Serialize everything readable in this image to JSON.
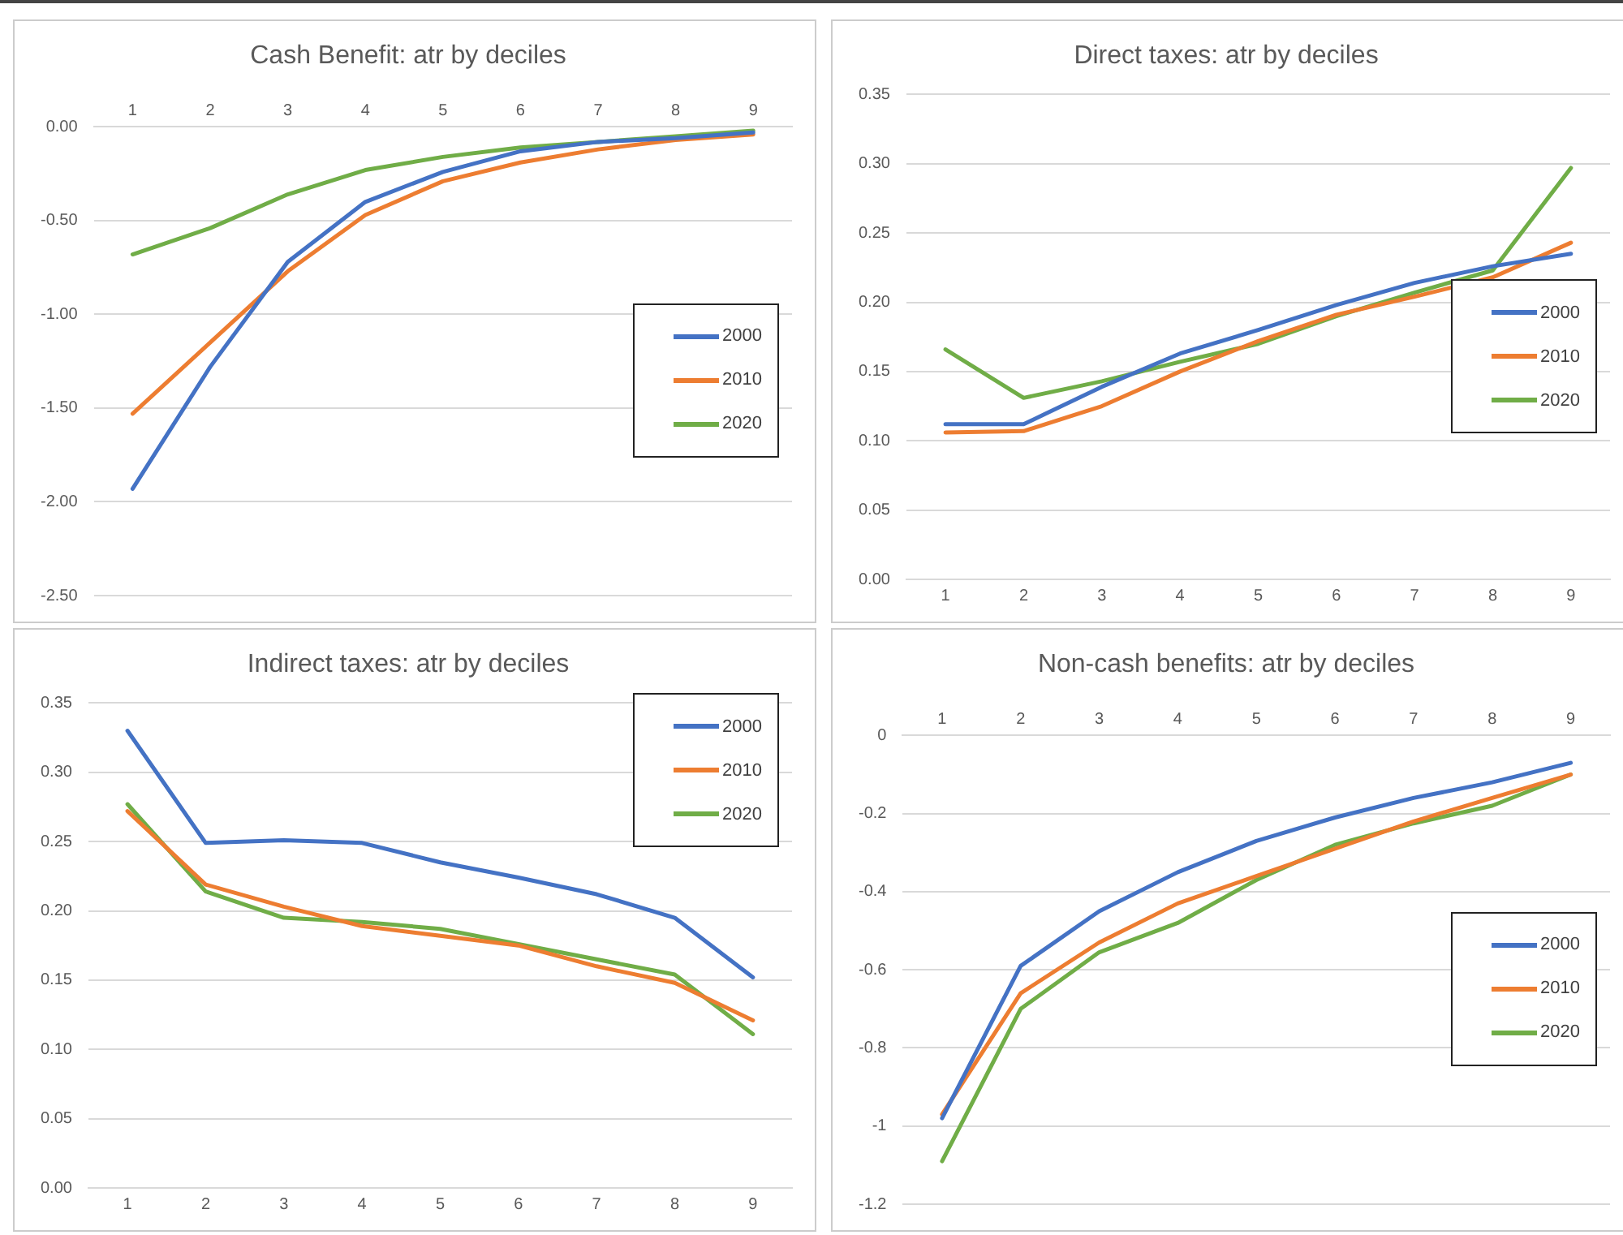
{
  "chart_data": [
    {
      "type": "line",
      "title": "Cash Benefit: atr by deciles",
      "categories": [
        "1",
        "2",
        "3",
        "4",
        "5",
        "6",
        "7",
        "8",
        "9"
      ],
      "ylim": [
        -2.5,
        0
      ],
      "yticks": [
        {
          "value": -2.5,
          "label": "-2.50"
        },
        {
          "value": -2,
          "label": "-2.00"
        },
        {
          "value": -1.5,
          "label": "-1.50"
        },
        {
          "value": -1,
          "label": "-1.00"
        },
        {
          "value": -0.5,
          "label": "-0.50"
        },
        {
          "value": 0,
          "label": "0.00"
        }
      ],
      "grid": "y",
      "legend": "right",
      "marker": "none",
      "series": [
        {
          "name": "2000",
          "color": "#4472c4",
          "values": [
            -1.93,
            -1.28,
            -0.72,
            -0.4,
            -0.24,
            -0.13,
            -0.08,
            -0.06,
            -0.03
          ]
        },
        {
          "name": "2010",
          "color": "#ed7d31",
          "values": [
            -1.53,
            -1.15,
            -0.77,
            -0.47,
            -0.29,
            -0.19,
            -0.12,
            -0.07,
            -0.04
          ]
        },
        {
          "name": "2020",
          "color": "#70ad47",
          "values": [
            -0.68,
            -0.54,
            -0.36,
            -0.23,
            -0.16,
            -0.11,
            -0.08,
            -0.05,
            -0.02
          ]
        }
      ]
    },
    {
      "type": "line",
      "title": "Direct taxes: atr by deciles",
      "categories": [
        "1",
        "2",
        "3",
        "4",
        "5",
        "6",
        "7",
        "8",
        "9"
      ],
      "ylim": [
        0,
        0.35
      ],
      "yticks": [
        {
          "value": 0,
          "label": "0.00"
        },
        {
          "value": 0.05,
          "label": "0.05"
        },
        {
          "value": 0.1,
          "label": "0.10"
        },
        {
          "value": 0.15,
          "label": "0.15"
        },
        {
          "value": 0.2,
          "label": "0.20"
        },
        {
          "value": 0.25,
          "label": "0.25"
        },
        {
          "value": 0.3,
          "label": "0.30"
        },
        {
          "value": 0.35,
          "label": "0.35"
        }
      ],
      "grid": "y",
      "legend": "right",
      "marker": "none",
      "series": [
        {
          "name": "2000",
          "color": "#4472c4",
          "values": [
            0.112,
            0.112,
            0.139,
            0.163,
            0.18,
            0.198,
            0.214,
            0.226,
            0.235
          ]
        },
        {
          "name": "2010",
          "color": "#ed7d31",
          "values": [
            0.106,
            0.107,
            0.125,
            0.15,
            0.172,
            0.191,
            0.204,
            0.218,
            0.243
          ]
        },
        {
          "name": "2020",
          "color": "#70ad47",
          "values": [
            0.166,
            0.131,
            0.143,
            0.157,
            0.17,
            0.19,
            0.207,
            0.223,
            0.297
          ]
        }
      ]
    },
    {
      "type": "line",
      "title": "Indirect taxes: atr by deciles",
      "categories": [
        "1",
        "2",
        "3",
        "4",
        "5",
        "6",
        "7",
        "8",
        "9"
      ],
      "ylim": [
        0,
        0.35
      ],
      "yticks": [
        {
          "value": 0,
          "label": "0.00"
        },
        {
          "value": 0.05,
          "label": "0.05"
        },
        {
          "value": 0.1,
          "label": "0.10"
        },
        {
          "value": 0.15,
          "label": "0.15"
        },
        {
          "value": 0.2,
          "label": "0.20"
        },
        {
          "value": 0.25,
          "label": "0.25"
        },
        {
          "value": 0.3,
          "label": "0.30"
        },
        {
          "value": 0.35,
          "label": "0.35"
        }
      ],
      "grid": "y",
      "legend": "top right",
      "marker": "none",
      "series": [
        {
          "name": "2000",
          "color": "#4472c4",
          "values": [
            0.33,
            0.249,
            0.251,
            0.249,
            0.235,
            0.224,
            0.212,
            0.195,
            0.152
          ]
        },
        {
          "name": "2010",
          "color": "#ed7d31",
          "values": [
            0.272,
            0.219,
            0.203,
            0.189,
            0.182,
            0.175,
            0.16,
            0.148,
            0.121
          ]
        },
        {
          "name": "2020",
          "color": "#70ad47",
          "values": [
            0.277,
            0.214,
            0.195,
            0.192,
            0.187,
            0.176,
            0.165,
            0.154,
            0.111
          ]
        }
      ]
    },
    {
      "type": "line",
      "title": "Non-cash benefits: atr by deciles",
      "categories": [
        "1",
        "2",
        "3",
        "4",
        "5",
        "6",
        "7",
        "8",
        "9"
      ],
      "ylim": [
        -1.2,
        0
      ],
      "yticks": [
        -1.2,
        -1,
        -0.8,
        -0.6,
        -0.4,
        -0.2,
        0
      ],
      "grid": "y",
      "legend": "right",
      "marker": "none",
      "series": [
        {
          "name": "2000",
          "color": "#4472c4",
          "values": [
            -0.98,
            -0.59,
            -0.45,
            -0.35,
            -0.27,
            -0.21,
            -0.16,
            -0.12,
            -0.07
          ]
        },
        {
          "name": "2010",
          "color": "#ed7d31",
          "values": [
            -0.97,
            -0.66,
            -0.53,
            -0.43,
            -0.36,
            -0.29,
            -0.22,
            -0.16,
            -0.1
          ]
        },
        {
          "name": "2020",
          "color": "#70ad47",
          "values": [
            -1.09,
            -0.7,
            -0.555,
            -0.48,
            -0.37,
            -0.28,
            -0.225,
            -0.18,
            -0.1
          ]
        }
      ]
    }
  ]
}
